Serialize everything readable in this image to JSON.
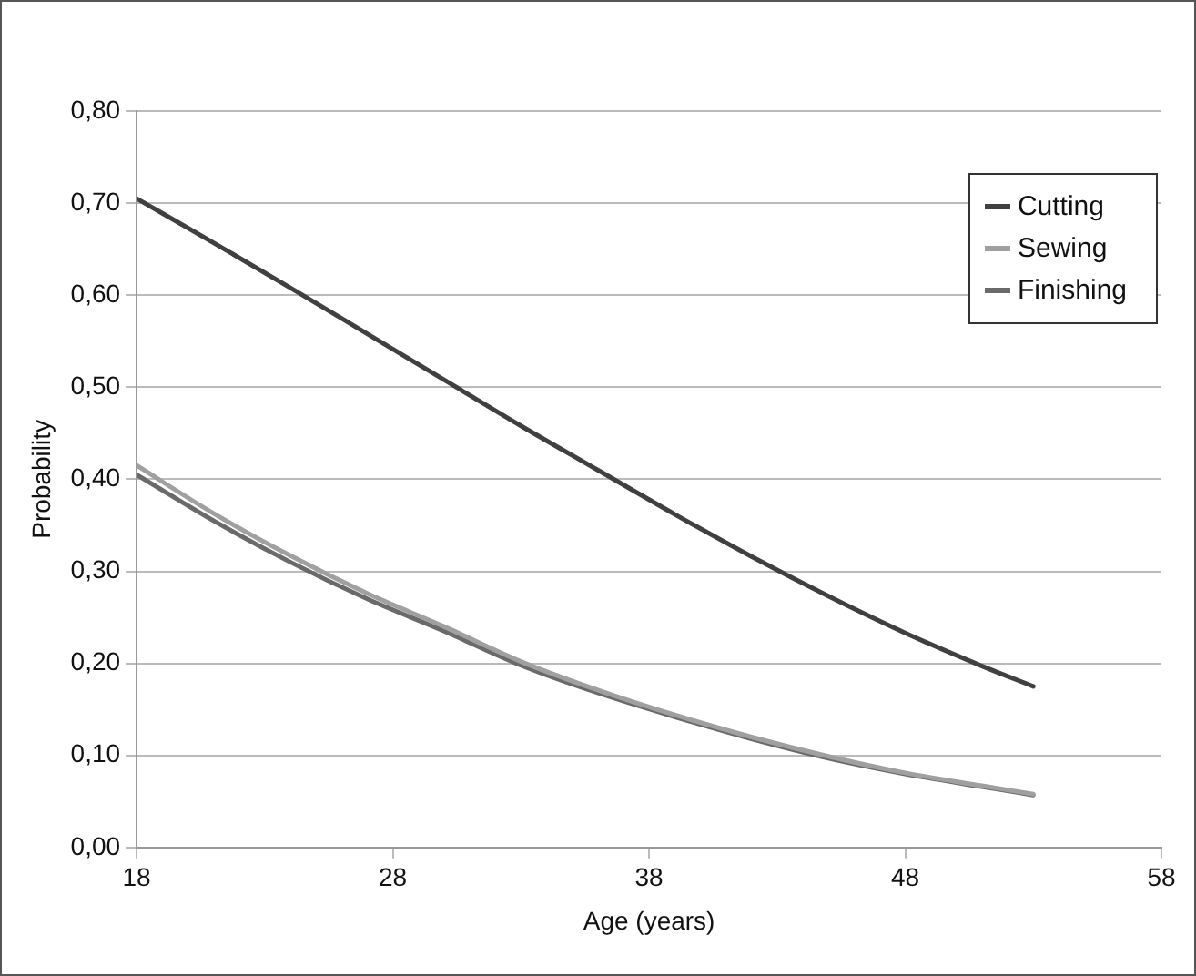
{
  "chart_data": {
    "type": "line",
    "xlabel": "Age (years)",
    "ylabel": "Probability",
    "x": [
      18,
      21,
      24,
      27,
      30,
      33,
      36,
      39,
      42,
      45,
      48,
      51,
      53
    ],
    "xlim": [
      18,
      58
    ],
    "xticks": [
      18,
      28,
      38,
      48,
      58
    ],
    "ylim": [
      0,
      0.8
    ],
    "yticks": [
      {
        "value": 0,
        "label": "0,00"
      },
      {
        "value": 0.1,
        "label": "0,10"
      },
      {
        "value": 0.2,
        "label": "0,20"
      },
      {
        "value": 0.3,
        "label": "0,30"
      },
      {
        "value": 0.4,
        "label": "0,40"
      },
      {
        "value": 0.5,
        "label": "0,50"
      },
      {
        "value": 0.6,
        "label": "0,60"
      },
      {
        "value": 0.7,
        "label": "0,70"
      },
      {
        "value": 0.8,
        "label": "0,80"
      }
    ],
    "grid": "y",
    "legend": "top right",
    "marker": "none",
    "line_style": "solid",
    "series": [
      {
        "name": "Cutting",
        "color": "#404040",
        "values": [
          0.705,
          0.657,
          0.608,
          0.558,
          0.508,
          0.458,
          0.41,
          0.362,
          0.316,
          0.273,
          0.233,
          0.197,
          0.175
        ]
      },
      {
        "name": "Sewing",
        "color": "#a0a0a0",
        "values": [
          0.415,
          0.363,
          0.317,
          0.276,
          0.24,
          0.202,
          0.171,
          0.144,
          0.12,
          0.099,
          0.081,
          0.067,
          0.058
        ]
      },
      {
        "name": "Finishing",
        "color": "#6a6a6a",
        "values": [
          0.405,
          0.355,
          0.31,
          0.27,
          0.235,
          0.198,
          0.168,
          0.142,
          0.118,
          0.097,
          0.08,
          0.066,
          0.057
        ]
      }
    ]
  }
}
